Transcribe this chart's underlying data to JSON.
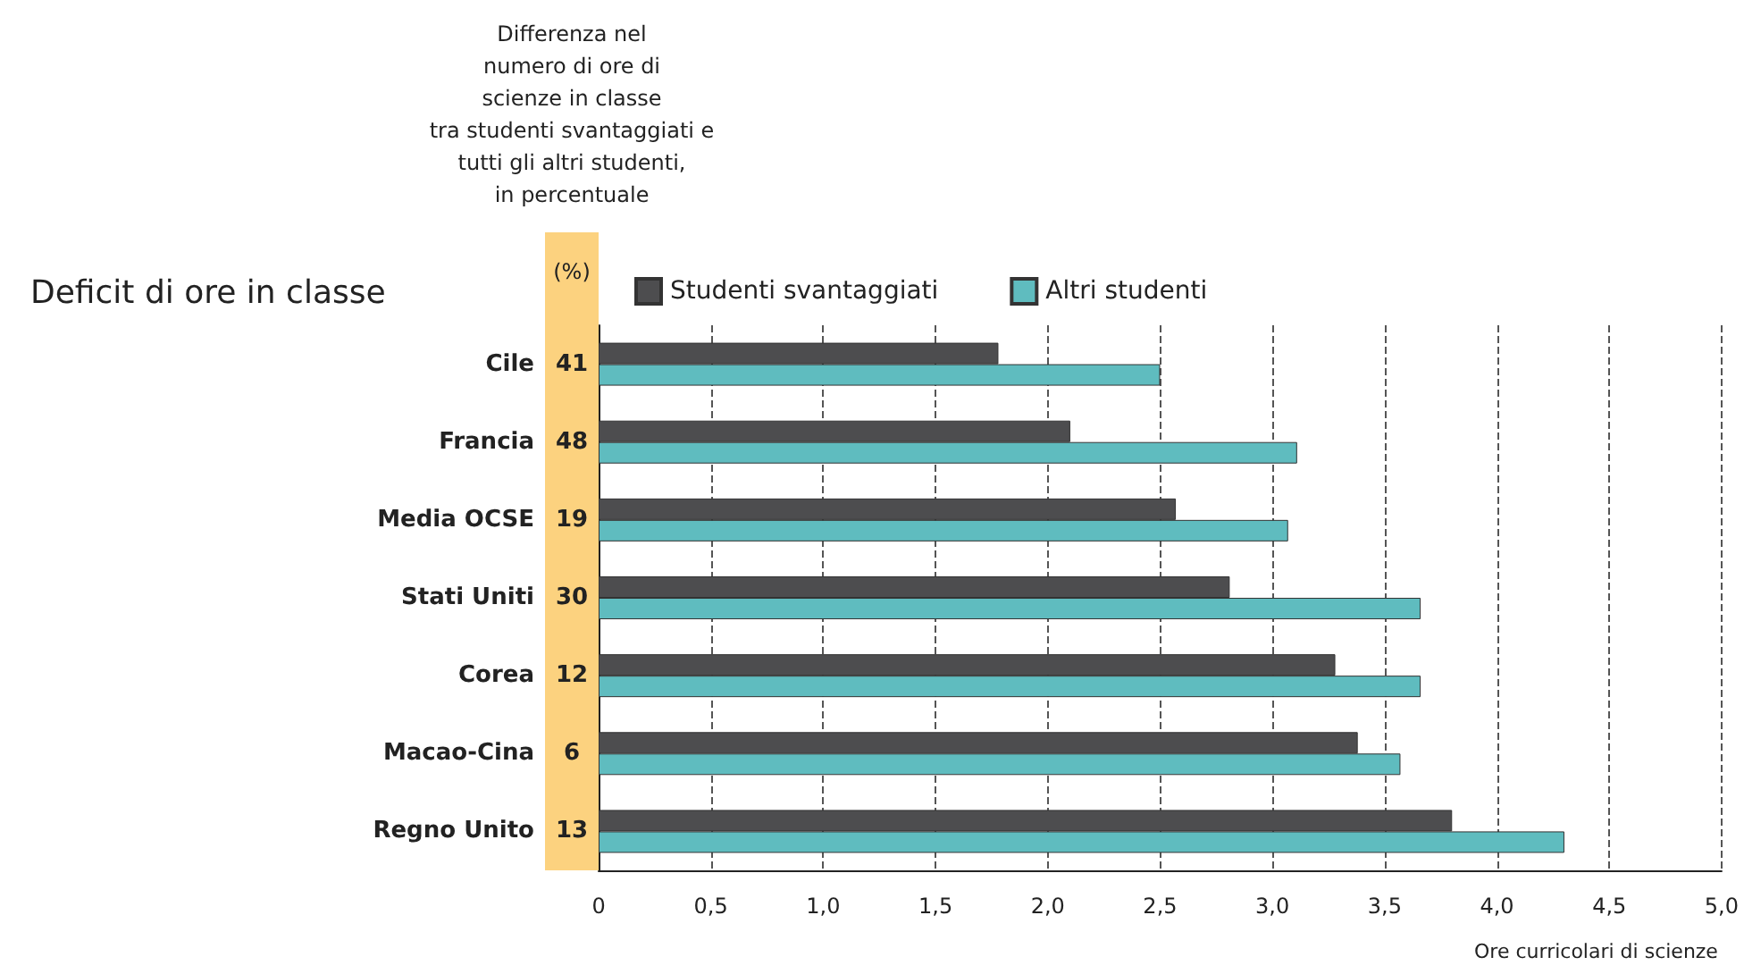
{
  "chart_data": {
    "type": "bar",
    "orientation": "horizontal",
    "title": "Deficit di ore in classe",
    "xlabel": "Ore curricolari di scienze",
    "categories": [
      "Cile",
      "Francia",
      "Media OCSE",
      "Stati Uniti",
      "Corea",
      "Macao-Cina",
      "Regno Unito"
    ],
    "series": [
      {
        "name": "Studenti svantaggiati",
        "color": "#4d4d4f",
        "values": [
          1.78,
          2.1,
          2.57,
          2.81,
          3.28,
          3.38,
          3.8
        ]
      },
      {
        "name": "Altri studenti",
        "color": "#5fbcbf",
        "values": [
          2.5,
          3.11,
          3.07,
          3.66,
          3.66,
          3.57,
          4.3
        ]
      }
    ],
    "xlim": [
      0,
      5
    ],
    "xticks": [
      0,
      {
        "value": 0.5,
        "label": "0,5"
      },
      {
        "value": 1,
        "label": "1,0"
      },
      {
        "value": 1.5,
        "label": "1,5"
      },
      {
        "value": 2,
        "label": "2,0"
      },
      {
        "value": 2.5,
        "label": "2,5"
      },
      {
        "value": 3,
        "label": "3,0"
      },
      {
        "value": 3.5,
        "label": "3,5"
      },
      {
        "value": 4,
        "label": "4,0"
      },
      {
        "value": 4.5,
        "label": "4,5"
      },
      {
        "value": 5,
        "label": "5,0"
      }
    ],
    "annotations": [
      "Differenza nel\nnumero di ore di\nscienze in classe\ntra studenti svantaggiati e\ntutti gli altri studenti,\nin percentuale",
      "(%)",
      "41",
      "48",
      "19",
      "30",
      "12",
      "6",
      "13"
    ],
    "grid": "x",
    "legend": "top"
  }
}
